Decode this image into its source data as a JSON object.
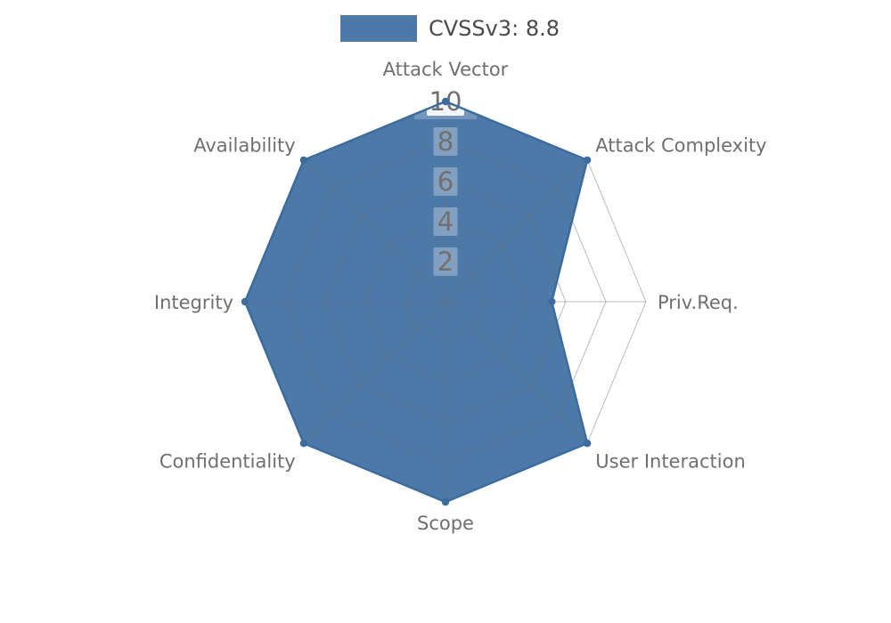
{
  "chart_data": {
    "type": "radar",
    "title": "CVSSv3: 8.8",
    "categories": [
      "Attack Vector",
      "Attack Complexity",
      "Priv.Req.",
      "User Interaction",
      "Scope",
      "Confidentiality",
      "Integrity",
      "Availability"
    ],
    "series": [
      {
        "name": "CVSSv3: 8.8",
        "values": [
          10,
          10,
          5.3,
          10,
          10,
          10,
          10,
          10
        ]
      }
    ],
    "r_axis": {
      "min": 0,
      "max": 10,
      "ticks": [
        2,
        4,
        6,
        8,
        10
      ]
    },
    "grid": true,
    "grid_shape": "polygon",
    "legend_position": "top-center",
    "colors": {
      "fill": "#4d79a8",
      "edge": "#3b6c9d",
      "grid": "#6a6a6a",
      "axis_label": "#6f6f6f",
      "tick_label": "#707070",
      "tick_backdrop": "#ffffff",
      "legend_text": "#4a4a4a",
      "background": "#ffffff"
    }
  }
}
